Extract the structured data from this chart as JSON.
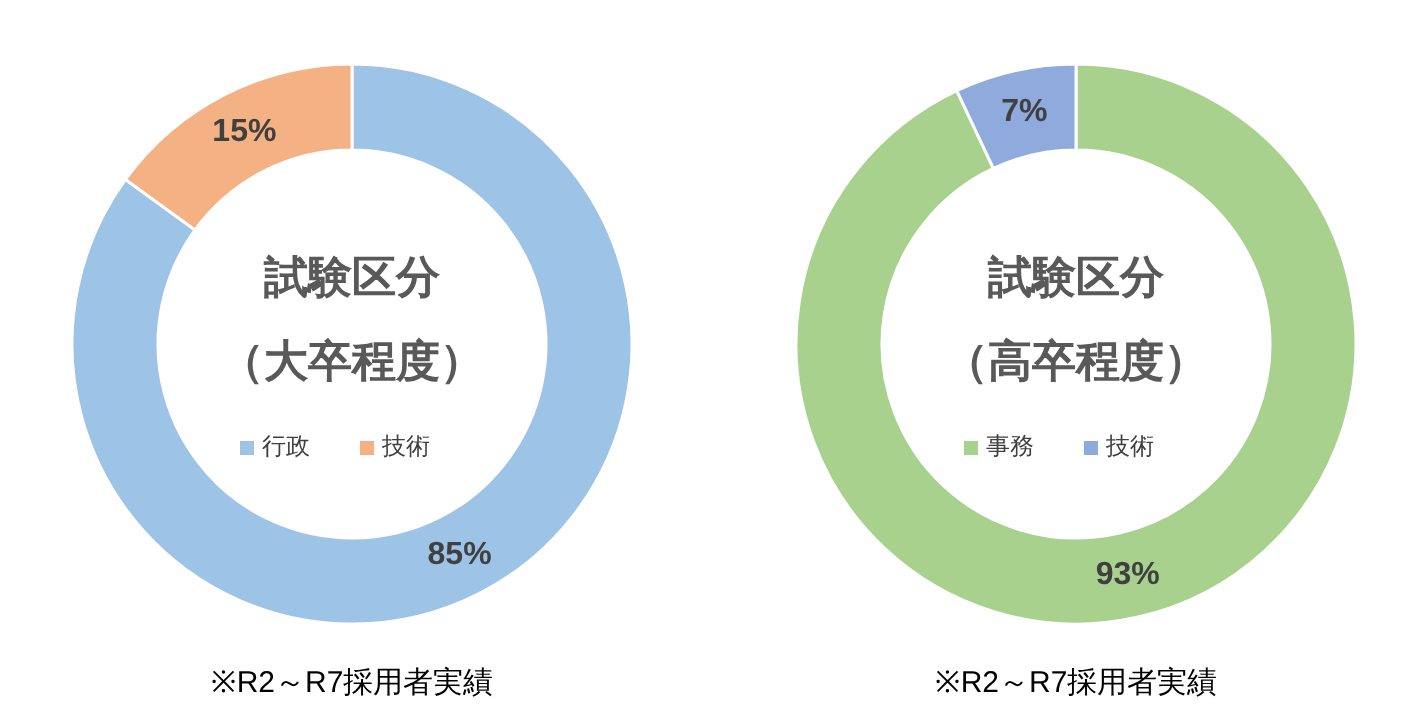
{
  "chart_data": [
    {
      "type": "donut",
      "title": "試験区分",
      "subtitle": "（大卒程度）",
      "categories": [
        "行政",
        "技術"
      ],
      "values": [
        85,
        15
      ],
      "colors": [
        "#9dc3e6",
        "#f4b183"
      ],
      "value_labels": [
        "85%",
        "15%"
      ],
      "legend": "center",
      "annotations": [
        "※R2～R7採用者実績"
      ]
    },
    {
      "type": "donut",
      "title": "試験区分",
      "subtitle": "（高卒程度）",
      "categories": [
        "事務",
        "技術"
      ],
      "values": [
        93,
        7
      ],
      "colors": [
        "#a9d18e",
        "#8faadc"
      ],
      "value_labels": [
        "93%",
        "7%"
      ],
      "legend": "center",
      "annotations": [
        "※R2～R7採用者実績"
      ]
    }
  ]
}
